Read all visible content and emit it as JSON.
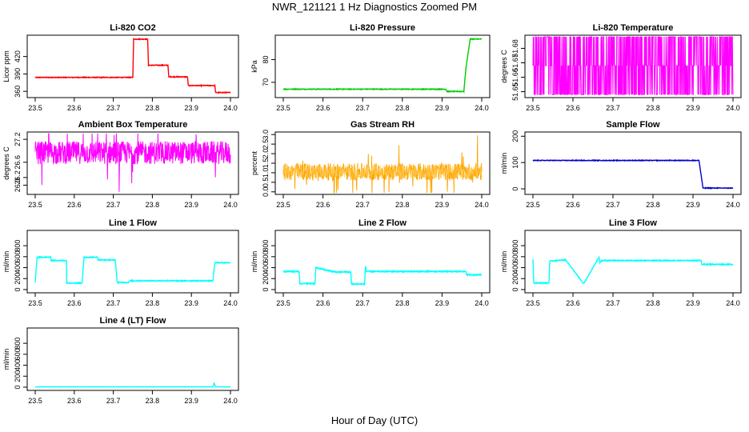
{
  "page": {
    "title": "NWR_121121  1 Hz Diagnostics Zoomed PM",
    "xlabel": "Hour of Day (UTC)"
  },
  "chart_data": [
    {
      "id": "co2",
      "type": "line",
      "title": "Li-820 CO2",
      "ylabel": "Licor ppm",
      "xlim": [
        23.5,
        24.0
      ],
      "ylim": [
        352,
        454
      ],
      "xticks": [
        "23.5",
        "23.6",
        "23.7",
        "23.8",
        "23.9",
        "24.0"
      ],
      "yticks": [
        {
          "v": 360,
          "label": "360"
        },
        {
          "v": 390,
          "label": "390"
        },
        {
          "v": 420,
          "label": "420"
        }
      ],
      "color": "#ff0000",
      "style": "step",
      "noise": 0.6,
      "series": [
        {
          "x": [
            23.5,
            23.75,
            23.752,
            23.788,
            23.79,
            23.84,
            23.842,
            23.89,
            23.892,
            23.96,
            23.962,
            24.0
          ],
          "y": [
            384,
            384,
            450,
            450,
            405,
            405,
            385,
            385,
            370,
            370,
            358,
            358
          ]
        }
      ]
    },
    {
      "id": "pressure",
      "type": "line",
      "title": "Li-820 Pressure",
      "ylabel": "kPa",
      "xlim": [
        23.5,
        24.0
      ],
      "ylim": [
        64,
        90
      ],
      "xticks": [
        "23.5",
        "23.6",
        "23.7",
        "23.8",
        "23.9",
        "24.0"
      ],
      "yticks": [
        {
          "v": 70,
          "label": "70"
        },
        {
          "v": 80,
          "label": "80"
        }
      ],
      "color": "#00cc00",
      "style": "step",
      "noise": 0.15,
      "series": [
        {
          "x": [
            23.5,
            23.91,
            23.912,
            23.955,
            23.96,
            23.97,
            23.97,
            24.0
          ],
          "y": [
            67,
            67,
            66,
            66,
            76,
            88,
            89,
            89
          ]
        }
      ]
    },
    {
      "id": "temp820",
      "type": "line",
      "title": "Li-820 Temperature",
      "ylabel": "degrees C",
      "xlim": [
        23.5,
        24.0
      ],
      "ylim": [
        51.647,
        51.688
      ],
      "xticks": [
        "23.5",
        "23.6",
        "23.7",
        "23.8",
        "23.9",
        "24.0"
      ],
      "yticks": [
        {
          "v": 51.65,
          "label": "51.65"
        },
        {
          "v": 51.66,
          "label": "51.66"
        },
        {
          "v": 51.67,
          "label": "51.67"
        },
        {
          "v": 51.68,
          "label": "51.68"
        }
      ],
      "color": "#ff00ff",
      "style": "flicker",
      "levels": [
        51.648,
        51.668,
        51.688
      ]
    },
    {
      "id": "ambient",
      "type": "line",
      "title": "Ambient Box Temperature",
      "ylabel": "degrees C",
      "xlim": [
        23.5,
        24.0
      ],
      "ylim": [
        25.8,
        27.35
      ],
      "xticks": [
        "23.5",
        "23.6",
        "23.7",
        "23.8",
        "23.9",
        "24.0"
      ],
      "yticks": [
        {
          "v": 26.0,
          "label": "26.0"
        },
        {
          "v": 26.2,
          "label": "26.2"
        },
        {
          "v": 26.6,
          "label": "26.6"
        },
        {
          "v": 27.2,
          "label": "27.2"
        }
      ],
      "color": "#ff00ff",
      "style": "noise",
      "center": 26.85,
      "amp": 0.3,
      "spike": 0.9
    },
    {
      "id": "rh",
      "type": "line",
      "title": "Gas Stream RH",
      "ylabel": "percent",
      "xlim": [
        23.5,
        24.0
      ],
      "ylim": [
        -0.05,
        3.05
      ],
      "xticks": [
        "23.5",
        "23.6",
        "23.7",
        "23.8",
        "23.9",
        "24.0"
      ],
      "yticks": [
        {
          "v": 0.0,
          "label": "0.0"
        },
        {
          "v": 0.5,
          "label": "0.5"
        },
        {
          "v": 1.0,
          "label": "1.0"
        },
        {
          "v": 1.5,
          "label": "1.5"
        },
        {
          "v": 2.0,
          "label": "2.0"
        },
        {
          "v": 2.5,
          "label": "2.5"
        },
        {
          "v": 3.0,
          "label": "3.0"
        }
      ],
      "color": "#ffa500",
      "style": "noise",
      "center": 1.05,
      "amp": 0.45,
      "spike": 1.7,
      "overlay": "#ffcc55"
    },
    {
      "id": "sample",
      "type": "line",
      "title": "Sample Flow",
      "ylabel": "ml/min",
      "xlim": [
        23.5,
        24.0
      ],
      "ylim": [
        -15,
        210
      ],
      "xticks": [
        "23.5",
        "23.6",
        "23.7",
        "23.8",
        "23.9",
        "24.0"
      ],
      "yticks": [
        {
          "v": 0,
          "label": "0"
        },
        {
          "v": 100,
          "label": "100"
        },
        {
          "v": 200,
          "label": "200"
        }
      ],
      "color": "#0000cc",
      "style": "step",
      "noise": 1.2,
      "series": [
        {
          "x": [
            23.5,
            23.915,
            23.925,
            24.0
          ],
          "y": [
            108,
            108,
            3,
            3
          ]
        }
      ]
    },
    {
      "id": "line1",
      "type": "line",
      "title": "Line 1 Flow",
      "ylabel": "ml/min",
      "xlim": [
        23.5,
        24.0
      ],
      "ylim": [
        -30,
        1050
      ],
      "xticks": [
        "23.5",
        "23.6",
        "23.7",
        "23.8",
        "23.9",
        "24.0"
      ],
      "yticks": [
        {
          "v": 0,
          "label": "0"
        },
        {
          "v": 200,
          "label": "200"
        },
        {
          "v": 400,
          "label": "400"
        },
        {
          "v": 600,
          "label": "600"
        },
        {
          "v": 800,
          "label": "800"
        }
      ],
      "color": "#00ffff",
      "style": "step",
      "noise": 8,
      "series": [
        {
          "x": [
            23.5,
            23.505,
            23.54,
            23.54,
            23.58,
            23.58,
            23.62,
            23.625,
            23.66,
            23.66,
            23.705,
            23.71,
            23.74,
            23.742,
            23.955,
            23.96,
            24.0
          ],
          "y": [
            130,
            590,
            590,
            530,
            530,
            120,
            120,
            590,
            590,
            540,
            540,
            130,
            130,
            160,
            160,
            490,
            490
          ]
        }
      ]
    },
    {
      "id": "line2",
      "type": "line",
      "title": "Line 2 Flow",
      "ylabel": "ml/min",
      "xlim": [
        23.5,
        24.0
      ],
      "ylim": [
        -30,
        1050
      ],
      "xticks": [
        "23.5",
        "23.6",
        "23.7",
        "23.8",
        "23.9",
        "24.0"
      ],
      "yticks": [
        {
          "v": 0,
          "label": "0"
        },
        {
          "v": 200,
          "label": "200"
        },
        {
          "v": 400,
          "label": "400"
        },
        {
          "v": 600,
          "label": "600"
        },
        {
          "v": 800,
          "label": "800"
        }
      ],
      "color": "#00ffff",
      "style": "step",
      "noise": 10,
      "series": [
        {
          "x": [
            23.5,
            23.54,
            23.542,
            23.58,
            23.582,
            23.63,
            23.67,
            23.672,
            23.705,
            23.707,
            23.71,
            23.96,
            23.962,
            24.0
          ],
          "y": [
            330,
            330,
            110,
            110,
            400,
            320,
            320,
            100,
            100,
            430,
            330,
            330,
            270,
            270
          ]
        }
      ]
    },
    {
      "id": "line3",
      "type": "line",
      "title": "Line 3 Flow",
      "ylabel": "ml/min",
      "xlim": [
        23.5,
        24.0
      ],
      "ylim": [
        -30,
        1050
      ],
      "xticks": [
        "23.5",
        "23.6",
        "23.7",
        "23.8",
        "23.9",
        "24.0"
      ],
      "yticks": [
        {
          "v": 0,
          "label": "0"
        },
        {
          "v": 200,
          "label": "200"
        },
        {
          "v": 400,
          "label": "400"
        },
        {
          "v": 600,
          "label": "600"
        },
        {
          "v": 800,
          "label": "800"
        }
      ],
      "color": "#00ffff",
      "style": "step",
      "noise": 8,
      "series": [
        {
          "x": [
            23.5,
            23.502,
            23.505,
            23.54,
            23.542,
            23.58,
            23.582,
            23.625,
            23.628,
            23.665,
            23.667,
            23.672,
            23.92,
            23.922,
            24.0
          ],
          "y": [
            560,
            120,
            120,
            120,
            520,
            540,
            540,
            120,
            120,
            590,
            490,
            530,
            530,
            460,
            460
          ]
        }
      ]
    },
    {
      "id": "line4",
      "type": "line",
      "title": "Line 4 (LT) Flow",
      "ylabel": "ml/min",
      "xlim": [
        23.5,
        24.0
      ],
      "ylim": [
        -30,
        1050
      ],
      "xticks": [
        "23.5",
        "23.6",
        "23.7",
        "23.8",
        "23.9",
        "24.0"
      ],
      "yticks": [
        {
          "v": 0,
          "label": "0"
        },
        {
          "v": 200,
          "label": "200"
        },
        {
          "v": 400,
          "label": "400"
        },
        {
          "v": 600,
          "label": "600"
        },
        {
          "v": 800,
          "label": "800"
        }
      ],
      "color": "#00ffff",
      "style": "step",
      "noise": 2,
      "series": [
        {
          "x": [
            23.5,
            23.955,
            23.958,
            23.962,
            24.0
          ],
          "y": [
            5,
            5,
            80,
            5,
            5
          ]
        }
      ]
    }
  ]
}
